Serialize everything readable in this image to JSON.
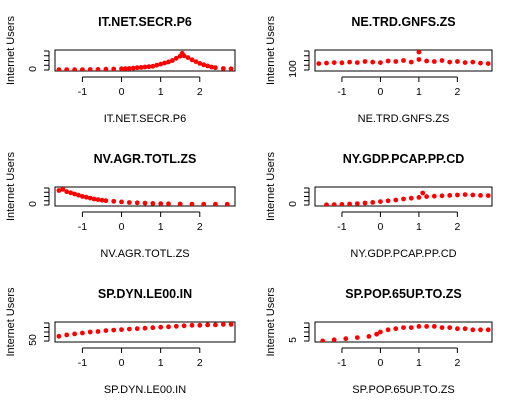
{
  "figure": {
    "ylabel": "Internet Users"
  },
  "chart_data": [
    {
      "type": "scatter",
      "title": "IT.NET.SECR.P6",
      "xlabel": "IT.NET.SECR.P6",
      "ylabel": "Internet Users",
      "xticks": [
        -1,
        0,
        1,
        2
      ],
      "yticks": [
        "0"
      ],
      "xlim": [
        -1.7,
        2.9
      ],
      "ylim": [
        -0.3,
        5.5
      ],
      "color": "#ff0000",
      "points": [
        [
          -1.6,
          0.05
        ],
        [
          -1.4,
          0.08
        ],
        [
          -1.2,
          0.05
        ],
        [
          -1.0,
          0.1
        ],
        [
          -0.8,
          0.12
        ],
        [
          -0.6,
          0.15
        ],
        [
          -0.4,
          0.2
        ],
        [
          -0.2,
          0.25
        ],
        [
          0.0,
          0.3
        ],
        [
          0.1,
          0.35
        ],
        [
          0.2,
          0.4
        ],
        [
          0.3,
          0.5
        ],
        [
          0.4,
          0.6
        ],
        [
          0.5,
          0.7
        ],
        [
          0.6,
          0.8
        ],
        [
          0.7,
          0.9
        ],
        [
          0.8,
          1.0
        ],
        [
          0.9,
          1.3
        ],
        [
          1.0,
          1.6
        ],
        [
          1.1,
          1.9
        ],
        [
          1.2,
          2.2
        ],
        [
          1.3,
          2.6
        ],
        [
          1.4,
          3.2
        ],
        [
          1.5,
          3.8
        ],
        [
          1.55,
          4.6
        ],
        [
          1.6,
          3.9
        ],
        [
          1.7,
          3.4
        ],
        [
          1.8,
          2.8
        ],
        [
          1.9,
          2.3
        ],
        [
          2.0,
          1.8
        ],
        [
          2.1,
          1.4
        ],
        [
          2.2,
          1.1
        ],
        [
          2.3,
          0.8
        ],
        [
          2.4,
          0.6
        ],
        [
          2.6,
          0.4
        ],
        [
          2.8,
          0.3
        ]
      ]
    },
    {
      "type": "scatter",
      "title": "NE.TRD.GNFS.ZS",
      "xlabel": "NE.TRD.GNFS.ZS",
      "ylabel": "Internet Users",
      "xticks": [
        -1,
        0,
        1,
        2
      ],
      "yticks": [
        "100"
      ],
      "xlim": [
        -1.7,
        2.9
      ],
      "ylim": [
        20,
        220
      ],
      "color": "#ff0000",
      "points": [
        [
          -1.6,
          90
        ],
        [
          -1.4,
          95
        ],
        [
          -1.2,
          100
        ],
        [
          -1.0,
          98
        ],
        [
          -0.8,
          105
        ],
        [
          -0.6,
          100
        ],
        [
          -0.4,
          110
        ],
        [
          -0.2,
          105
        ],
        [
          0.0,
          100
        ],
        [
          0.2,
          115
        ],
        [
          0.4,
          110
        ],
        [
          0.6,
          120
        ],
        [
          0.8,
          105
        ],
        [
          1.0,
          130
        ],
        [
          1.0,
          200
        ],
        [
          1.2,
          115
        ],
        [
          1.4,
          110
        ],
        [
          1.6,
          120
        ],
        [
          1.8,
          105
        ],
        [
          2.0,
          110
        ],
        [
          2.2,
          100
        ],
        [
          2.4,
          105
        ],
        [
          2.6,
          95
        ],
        [
          2.8,
          90
        ]
      ]
    },
    {
      "type": "scatter",
      "title": "NV.AGR.TOTL.ZS",
      "xlabel": "NV.AGR.TOTL.ZS",
      "ylabel": "Internet Users",
      "xticks": [
        -1,
        0,
        1,
        2
      ],
      "yticks": [
        "0"
      ],
      "xlim": [
        -1.7,
        2.9
      ],
      "ylim": [
        -5,
        60
      ],
      "color": "#ff0000",
      "points": [
        [
          -1.6,
          48
        ],
        [
          -1.5,
          52
        ],
        [
          -1.4,
          44
        ],
        [
          -1.3,
          40
        ],
        [
          -1.2,
          36
        ],
        [
          -1.1,
          32
        ],
        [
          -1.0,
          28
        ],
        [
          -0.9,
          25
        ],
        [
          -0.8,
          22
        ],
        [
          -0.7,
          19
        ],
        [
          -0.6,
          17
        ],
        [
          -0.5,
          15
        ],
        [
          -0.4,
          13
        ],
        [
          -0.2,
          11
        ],
        [
          0.0,
          9
        ],
        [
          0.2,
          7
        ],
        [
          0.4,
          6
        ],
        [
          0.6,
          5
        ],
        [
          0.8,
          4
        ],
        [
          1.0,
          3
        ],
        [
          1.2,
          2.5
        ],
        [
          1.5,
          2
        ],
        [
          1.8,
          1.5
        ],
        [
          2.1,
          1.2
        ],
        [
          2.4,
          1
        ],
        [
          2.7,
          0.8
        ]
      ]
    },
    {
      "type": "scatter",
      "title": "NY.GDP.PCAP.PP.CD",
      "xlabel": "NY.GDP.PCAP.PP.CD",
      "ylabel": "Internet Users",
      "xticks": [
        -1,
        0,
        1,
        2
      ],
      "yticks": [
        "0"
      ],
      "xlim": [
        -1.7,
        2.9
      ],
      "ylim": [
        -5000,
        90000
      ],
      "color": "#ff0000",
      "points": [
        [
          -1.4,
          1000
        ],
        [
          -1.2,
          2000
        ],
        [
          -1.0,
          3000
        ],
        [
          -0.8,
          5000
        ],
        [
          -0.6,
          7000
        ],
        [
          -0.4,
          10000
        ],
        [
          -0.2,
          13000
        ],
        [
          0.0,
          17000
        ],
        [
          0.2,
          21000
        ],
        [
          0.4,
          25000
        ],
        [
          0.6,
          30000
        ],
        [
          0.8,
          34000
        ],
        [
          1.0,
          38000
        ],
        [
          1.1,
          60000
        ],
        [
          1.2,
          42000
        ],
        [
          1.4,
          44000
        ],
        [
          1.6,
          46000
        ],
        [
          1.8,
          48000
        ],
        [
          2.0,
          50000
        ],
        [
          2.2,
          52000
        ],
        [
          2.4,
          50000
        ],
        [
          2.6,
          48000
        ],
        [
          2.8,
          47000
        ]
      ]
    },
    {
      "type": "scatter",
      "title": "SP.DYN.LE00.IN",
      "xlabel": "SP.DYN.LE00.IN",
      "ylabel": "Internet Users",
      "xticks": [
        -1,
        0,
        1,
        2
      ],
      "yticks": [
        "50"
      ],
      "xlim": [
        -1.7,
        2.9
      ],
      "ylim": [
        45,
        87
      ],
      "color": "#ff0000",
      "points": [
        [
          -1.6,
          57
        ],
        [
          -1.4,
          60
        ],
        [
          -1.2,
          62
        ],
        [
          -1.0,
          64
        ],
        [
          -0.8,
          66
        ],
        [
          -0.6,
          67
        ],
        [
          -0.4,
          69
        ],
        [
          -0.2,
          70
        ],
        [
          0.0,
          71
        ],
        [
          0.2,
          72
        ],
        [
          0.4,
          73
        ],
        [
          0.6,
          74
        ],
        [
          0.8,
          75
        ],
        [
          1.0,
          76
        ],
        [
          1.2,
          77
        ],
        [
          1.4,
          78
        ],
        [
          1.6,
          79
        ],
        [
          1.8,
          80
        ],
        [
          2.0,
          80
        ],
        [
          2.2,
          81
        ],
        [
          2.4,
          81
        ],
        [
          2.6,
          82
        ],
        [
          2.8,
          82
        ]
      ]
    },
    {
      "type": "scatter",
      "title": "SP.POP.65UP.TO.ZS",
      "xlabel": "SP.POP.65UP.TO.ZS",
      "ylabel": "Internet Users",
      "xticks": [
        -1,
        0,
        1,
        2
      ],
      "yticks": [
        "5"
      ],
      "xlim": [
        -1.7,
        2.9
      ],
      "ylim": [
        3,
        21
      ],
      "color": "#ff0000",
      "points": [
        [
          -1.5,
          4
        ],
        [
          -1.2,
          5
        ],
        [
          -0.9,
          6
        ],
        [
          -0.6,
          7
        ],
        [
          -0.3,
          8
        ],
        [
          -0.1,
          10
        ],
        [
          0.0,
          12
        ],
        [
          0.2,
          14
        ],
        [
          0.4,
          15
        ],
        [
          0.6,
          16
        ],
        [
          0.8,
          16
        ],
        [
          1.0,
          17
        ],
        [
          1.2,
          17
        ],
        [
          1.4,
          17
        ],
        [
          1.6,
          16
        ],
        [
          1.8,
          16
        ],
        [
          2.0,
          15
        ],
        [
          2.2,
          15
        ],
        [
          2.4,
          14
        ],
        [
          2.6,
          14
        ],
        [
          2.8,
          14
        ]
      ]
    }
  ]
}
